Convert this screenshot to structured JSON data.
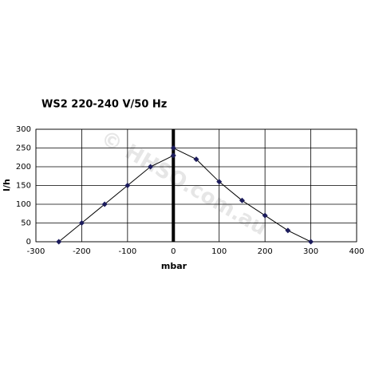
{
  "chart_data": {
    "type": "line",
    "title": "WS2 220-240 V/50 Hz",
    "x_label": "mbar",
    "y_label": "l/h",
    "watermark": "© HHSO.com.au",
    "x": [
      -250,
      -200,
      -150,
      -100,
      -50,
      0,
      0,
      50,
      100,
      150,
      200,
      250,
      300
    ],
    "series": [
      {
        "color": "#1c1c5c",
        "values": [
          0,
          50,
          100,
          150,
          200,
          230,
          250,
          220,
          160,
          110,
          70,
          30,
          0
        ]
      }
    ],
    "xlim": [
      -300,
      400
    ],
    "xticks": [
      -300,
      -200,
      -100,
      0,
      100,
      200,
      300,
      400
    ],
    "ylim": [
      0,
      300
    ],
    "yticks": [
      0,
      50,
      100,
      150,
      200,
      250,
      300
    ],
    "grid": true
  }
}
